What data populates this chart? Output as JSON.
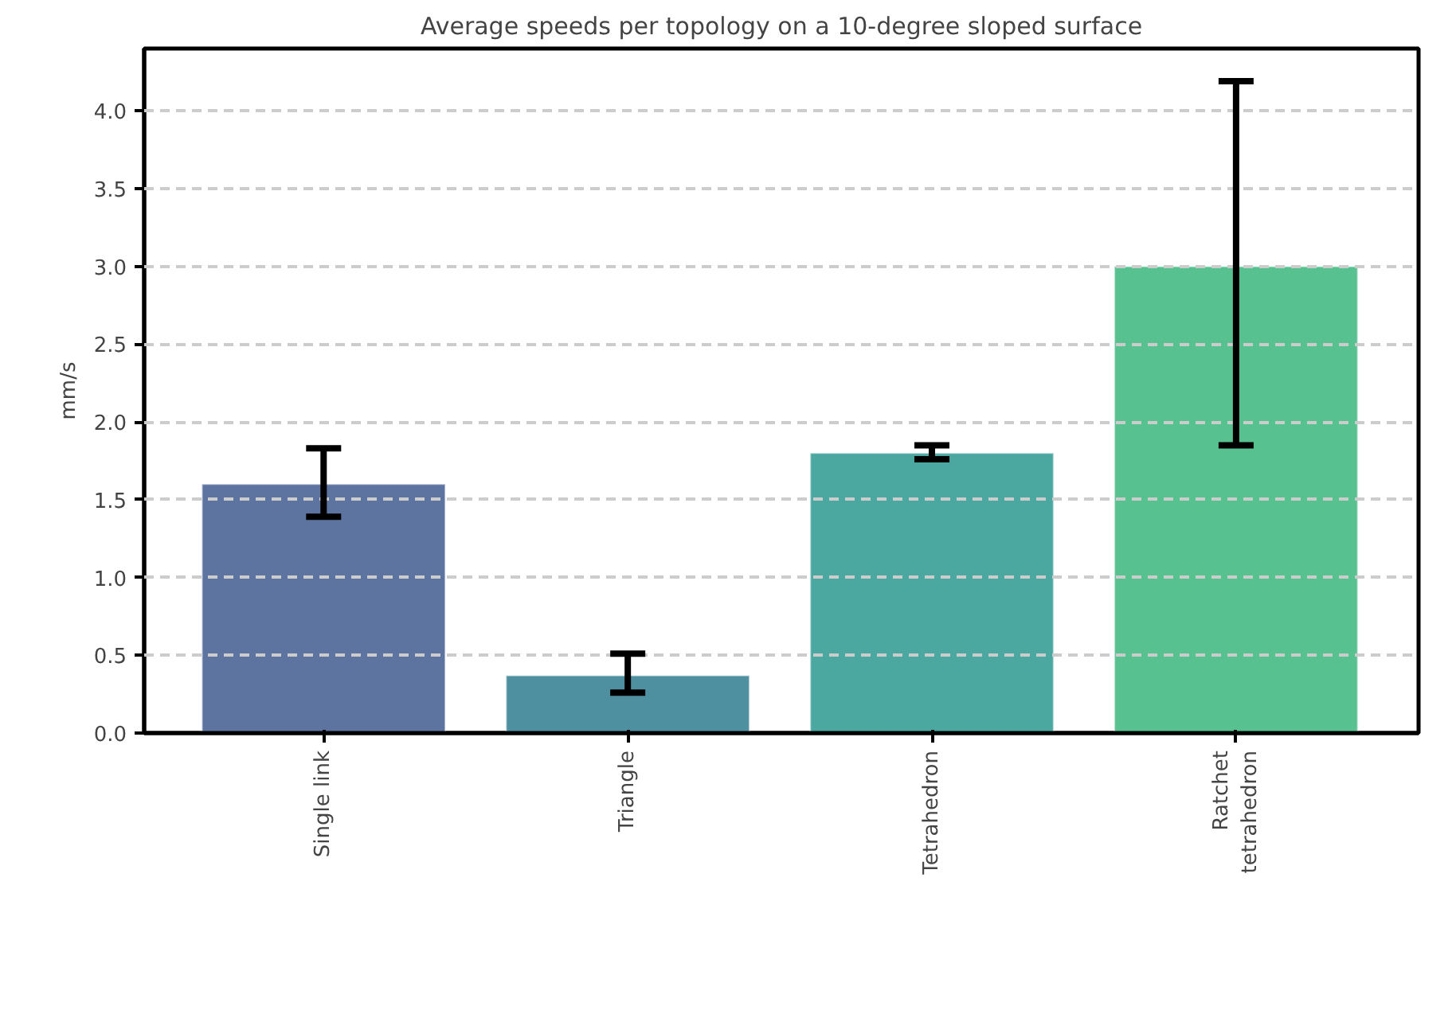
{
  "chart_data": {
    "type": "bar",
    "title": "Average speeds per topology on a 10-degree sloped surface",
    "ylabel": "mm/s",
    "categories": [
      "Single link",
      "Triangle",
      "Tetrahedron",
      "Ratchet\ntetrahedron"
    ],
    "values": [
      1.6,
      0.37,
      1.8,
      3.0
    ],
    "colors": [
      "#5e74a0",
      "#4e8fa0",
      "#4aa8a0",
      "#58c190"
    ],
    "errors": [
      [
        1.39,
        1.83
      ],
      [
        0.26,
        0.51
      ],
      [
        1.76,
        1.85
      ],
      [
        1.85,
        4.19
      ]
    ],
    "ylim": [
      0,
      4.4
    ],
    "yticks": [
      {
        "value": 0,
        "label": "0.0"
      },
      {
        "value": 0.5,
        "label": "0.5"
      },
      {
        "value": 1,
        "label": "1.0"
      },
      {
        "value": 1.5,
        "label": "1.5"
      },
      {
        "value": 2,
        "label": "2.0"
      },
      {
        "value": 2.5,
        "label": "2.5"
      },
      {
        "value": 3,
        "label": "3.0"
      },
      {
        "value": 3.5,
        "label": "3.5"
      },
      {
        "value": 4,
        "label": "4.0"
      }
    ],
    "grid": "y"
  }
}
